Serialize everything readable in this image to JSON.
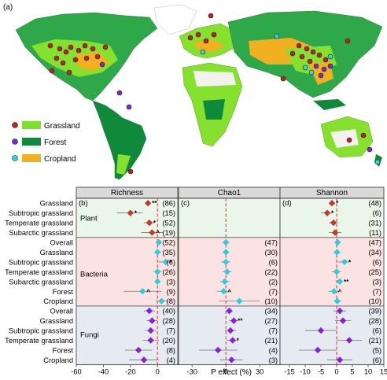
{
  "figure": {
    "panel_a_label": "(a)",
    "legend": [
      {
        "label": "Grassland",
        "marker_color": "#c0201e",
        "swatch_color": "#7de02a"
      },
      {
        "label": "Forest",
        "marker_color": "#7a2bc0",
        "swatch_color": "#0f8a3a"
      },
      {
        "label": "Cropland",
        "marker_color": "#35d4d6",
        "swatch_color": "#f0b020"
      }
    ],
    "xlabel": "P effect (%)"
  },
  "chart_data": {
    "type": "forest-plot",
    "rows": [
      "Grassland",
      "Subtropic grassland",
      "Temperate grassland",
      "Subarctic grassland",
      "Overall",
      "Grassland",
      "Subtropic grassland",
      "Temperate grassland",
      "Subarctic grassland",
      "Forest",
      "Cropland",
      "Overall",
      "Grassland",
      "Subtropic grassland",
      "Temperate grassland",
      "Forest",
      "Cropland"
    ],
    "groups": [
      {
        "name": "Plant",
        "row_start": 0,
        "row_end": 3,
        "color": "#eaf6ea",
        "marker_color": "#c0392b",
        "label_row": 1.5
      },
      {
        "name": "Bacteria",
        "row_start": 4,
        "row_end": 10,
        "color": "#fce3e3",
        "marker_color": "#29cfdc",
        "label_row": 7.2
      },
      {
        "name": "Fungi",
        "row_start": 11,
        "row_end": 16,
        "color": "#e6ebf2",
        "marker_color": "#8a1fd8",
        "label_row": 13.4
      }
    ],
    "panels": [
      {
        "title": "Richness",
        "letter": "(b)",
        "xlim": [
          -60,
          15
        ],
        "ticks": [
          -60,
          -40,
          -20,
          0
        ],
        "tick_labels": [
          "-60",
          "-40",
          "-20",
          "0"
        ],
        "points": [
          {
            "row": 0,
            "value": -7,
            "ci": [
              -9,
              -5
            ],
            "n": "(86)",
            "sig": "**"
          },
          {
            "row": 1,
            "value": -20,
            "ci": [
              -30,
              -11
            ],
            "n": "(15)",
            "sig": "*"
          },
          {
            "row": 2,
            "value": -6,
            "ci": [
              -10,
              -2
            ],
            "n": "(52)",
            "sig": "*"
          },
          {
            "row": 3,
            "value": -4,
            "ci": [
              -12,
              4
            ],
            "n": "(19)",
            "sig": "^"
          },
          {
            "row": 4,
            "value": 1,
            "ci": [
              -1,
              3
            ],
            "n": "(52)",
            "sig": ""
          },
          {
            "row": 5,
            "value": 0,
            "ci": [
              -2,
              3
            ],
            "n": "(35)",
            "sig": ""
          },
          {
            "row": 6,
            "value": 6,
            "ci": [
              1,
              11
            ],
            "n": "(6)",
            "sig": "*"
          },
          {
            "row": 7,
            "value": 0,
            "ci": [
              -3,
              3
            ],
            "n": "(26)",
            "sig": ""
          },
          {
            "row": 8,
            "value": 0,
            "ci": [
              -2,
              2
            ],
            "n": "(3)",
            "sig": ""
          },
          {
            "row": 9,
            "value": -11,
            "ci": [
              -25,
              3
            ],
            "n": "(9)",
            "sig": "^"
          },
          {
            "row": 10,
            "value": 3,
            "ci": [
              -1,
              8
            ],
            "n": "(8)",
            "sig": ""
          },
          {
            "row": 11,
            "value": -6,
            "ci": [
              -10,
              -2
            ],
            "n": "(40)",
            "sig": ""
          },
          {
            "row": 12,
            "value": -4,
            "ci": [
              -8,
              0
            ],
            "n": "(28)",
            "sig": ""
          },
          {
            "row": 13,
            "value": -5,
            "ci": [
              -9,
              -1
            ],
            "n": "(7)",
            "sig": ""
          },
          {
            "row": 14,
            "value": -5,
            "ci": [
              -11,
              1
            ],
            "n": "(20)",
            "sig": ""
          },
          {
            "row": 15,
            "value": -14,
            "ci": [
              -24,
              -4
            ],
            "n": "(8)",
            "sig": ""
          },
          {
            "row": 16,
            "value": -10,
            "ci": [
              -21,
              1
            ],
            "n": "(4)",
            "sig": ""
          }
        ]
      },
      {
        "title": "Chao1",
        "letter": "(c)",
        "xlim": [
          -42,
          48
        ],
        "ticks": [
          -30,
          0,
          30
        ],
        "tick_labels": [
          "-30",
          "0",
          "30"
        ],
        "points": [
          {
            "row": 4,
            "value": 0,
            "ci": [
              -3,
              3
            ],
            "n": "(47)",
            "sig": ""
          },
          {
            "row": 5,
            "value": 0,
            "ci": [
              -3,
              3
            ],
            "n": "(30)",
            "sig": ""
          },
          {
            "row": 6,
            "value": 0,
            "ci": [
              -4,
              4
            ],
            "n": "(6)",
            "sig": ""
          },
          {
            "row": 7,
            "value": 1,
            "ci": [
              -3,
              5
            ],
            "n": "(22)",
            "sig": ""
          },
          {
            "row": 8,
            "value": -1,
            "ci": [
              -5,
              3
            ],
            "n": "(2)",
            "sig": ""
          },
          {
            "row": 9,
            "value": -2,
            "ci": [
              -8,
              4
            ],
            "n": "(7)",
            "sig": "^"
          },
          {
            "row": 10,
            "value": 12,
            "ci": [
              -6,
              30
            ],
            "n": "(10)",
            "sig": ""
          },
          {
            "row": 11,
            "value": 3,
            "ci": [
              0,
              6
            ],
            "n": "(34)",
            "sig": ""
          },
          {
            "row": 12,
            "value": 7,
            "ci": [
              3,
              11
            ],
            "n": "(27)",
            "sig": "**"
          },
          {
            "row": 13,
            "value": 4,
            "ci": [
              -1,
              9
            ],
            "n": "(7)",
            "sig": ""
          },
          {
            "row": 14,
            "value": 6,
            "ci": [
              1,
              11
            ],
            "n": "(21)",
            "sig": "*"
          },
          {
            "row": 15,
            "value": -7,
            "ci": [
              -24,
              10
            ],
            "n": "(4)",
            "sig": ""
          },
          {
            "row": 16,
            "value": 5,
            "ci": [
              -5,
              15
            ],
            "n": "(3)",
            "sig": ""
          }
        ]
      },
      {
        "title": "Shannon",
        "letter": "(d)",
        "xlim": [
          -18,
          15
        ],
        "ticks": [
          -15,
          -10,
          -5,
          0,
          5,
          10,
          15
        ],
        "tick_labels": [
          "-15",
          "-10",
          "-5",
          "0",
          "5",
          "10",
          "15"
        ],
        "points": [
          {
            "row": 0,
            "value": -1.5,
            "ci": [
              -2.5,
              -0.5
            ],
            "n": "(48)",
            "sig": "*"
          },
          {
            "row": 1,
            "value": -3,
            "ci": [
              -5,
              -1
            ],
            "n": "(6)",
            "sig": "*"
          },
          {
            "row": 2,
            "value": -1,
            "ci": [
              -2.5,
              0.5
            ],
            "n": "(31)",
            "sig": ""
          },
          {
            "row": 3,
            "value": -0.5,
            "ci": [
              -2.5,
              1.5
            ],
            "n": "(11)",
            "sig": ""
          },
          {
            "row": 4,
            "value": 0.3,
            "ci": [
              -0.7,
              1.3
            ],
            "n": "(47)",
            "sig": ""
          },
          {
            "row": 5,
            "value": 0.1,
            "ci": [
              -1,
              1.2
            ],
            "n": "(34)",
            "sig": ""
          },
          {
            "row": 6,
            "value": 2.5,
            "ci": [
              0.5,
              4.5
            ],
            "n": "(6)",
            "sig": "*"
          },
          {
            "row": 7,
            "value": 0,
            "ci": [
              -1.5,
              1.5
            ],
            "n": "(25)",
            "sig": ""
          },
          {
            "row": 8,
            "value": 1,
            "ci": [
              0.5,
              1.5
            ],
            "n": "(3)",
            "sig": "**"
          },
          {
            "row": 9,
            "value": -0.8,
            "ci": [
              -2.5,
              1
            ],
            "n": "(7)",
            "sig": "^"
          },
          {
            "row": 10,
            "value": 0.2,
            "ci": [
              -1,
              1.4
            ],
            "n": "(10)",
            "sig": ""
          },
          {
            "row": 11,
            "value": 1,
            "ci": [
              -1,
              3
            ],
            "n": "(39)",
            "sig": ""
          },
          {
            "row": 12,
            "value": 2,
            "ci": [
              -0.5,
              4.5
            ],
            "n": "(28)",
            "sig": ""
          },
          {
            "row": 13,
            "value": -5,
            "ci": [
              -10,
              0
            ],
            "n": "(6)",
            "sig": ""
          },
          {
            "row": 14,
            "value": 4,
            "ci": [
              0,
              8
            ],
            "n": "(21)",
            "sig": ""
          },
          {
            "row": 15,
            "value": -6,
            "ci": [
              -12,
              0
            ],
            "n": "(5)",
            "sig": ""
          },
          {
            "row": 16,
            "value": 1,
            "ci": [
              -3,
              5
            ],
            "n": "(6)",
            "sig": ""
          }
        ]
      }
    ]
  }
}
